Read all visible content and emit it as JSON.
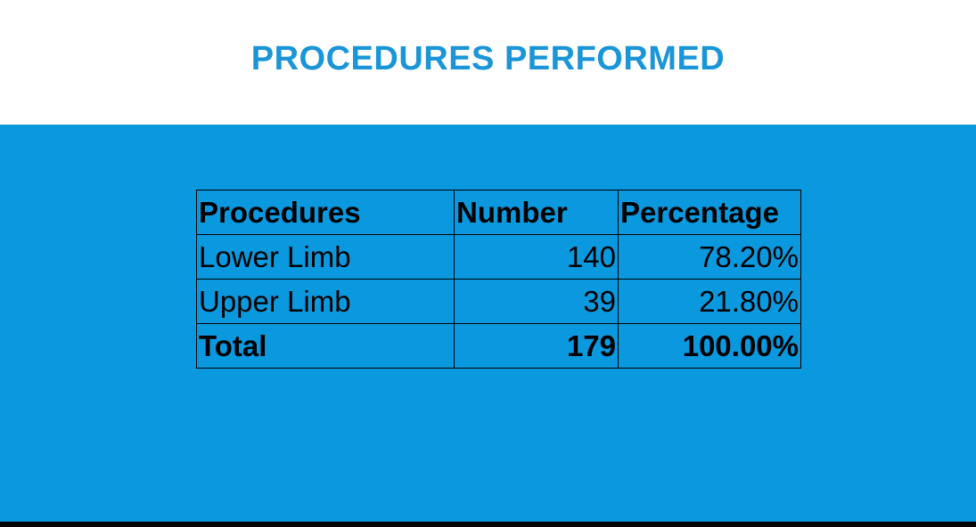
{
  "title": "PROCEDURES PERFORMED",
  "colors": {
    "title": "#1a96d8",
    "panel": "#0a98df",
    "header_bg": "#ffffff",
    "text": "#000000"
  },
  "table": {
    "headers": [
      "Procedures",
      "Number",
      "Percentage"
    ],
    "rows": [
      {
        "procedure": "Lower Limb",
        "number": "140",
        "percentage": "78.20%"
      },
      {
        "procedure": "Upper Limb",
        "number": "39",
        "percentage": "21.80%"
      }
    ],
    "total": {
      "procedure": "Total",
      "number": "179",
      "percentage": "100.00%"
    }
  }
}
